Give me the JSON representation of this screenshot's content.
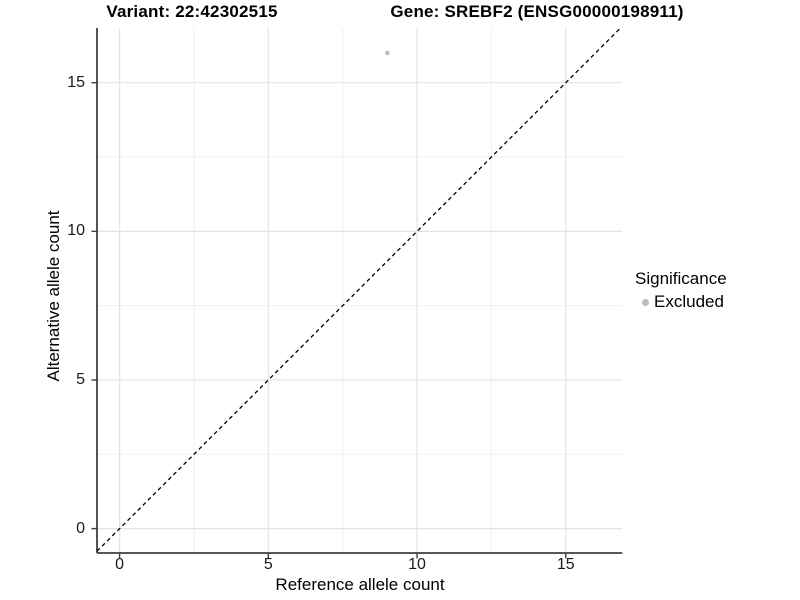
{
  "chart_data": {
    "type": "scatter",
    "titles": {
      "left": "Variant: 22:42302515",
      "right": "Gene: SREBF2 (ENSG00000198911)"
    },
    "xlabel": "Reference allele count",
    "ylabel": "Alternative allele count",
    "x_ticks": [
      0,
      5,
      10,
      15
    ],
    "y_ticks": [
      0,
      5,
      10,
      15
    ],
    "x_minor_ticks": [
      2.5,
      7.5,
      12.5
    ],
    "y_minor_ticks": [
      2.5,
      7.5,
      12.5
    ],
    "xlim": [
      -0.76,
      16.9
    ],
    "ylim": [
      -0.82,
      16.84
    ],
    "grid": {
      "major": true,
      "minor": true,
      "major_color": "#e3e3e3",
      "minor_color": "#f0f0f0"
    },
    "identity_line": {
      "slope": 1,
      "intercept": 0,
      "style": "dashed",
      "color": "#000000"
    },
    "series": [
      {
        "name": "Excluded",
        "color": "#bfbfbf",
        "points": [
          {
            "x": 9,
            "y": 16
          }
        ]
      }
    ],
    "legend": {
      "title": "Significance",
      "position": "right",
      "items": [
        {
          "label": "Excluded",
          "color": "#bdbdbd"
        }
      ]
    },
    "axis": {
      "line_color": "#404040",
      "tick_color": "#404040"
    }
  }
}
